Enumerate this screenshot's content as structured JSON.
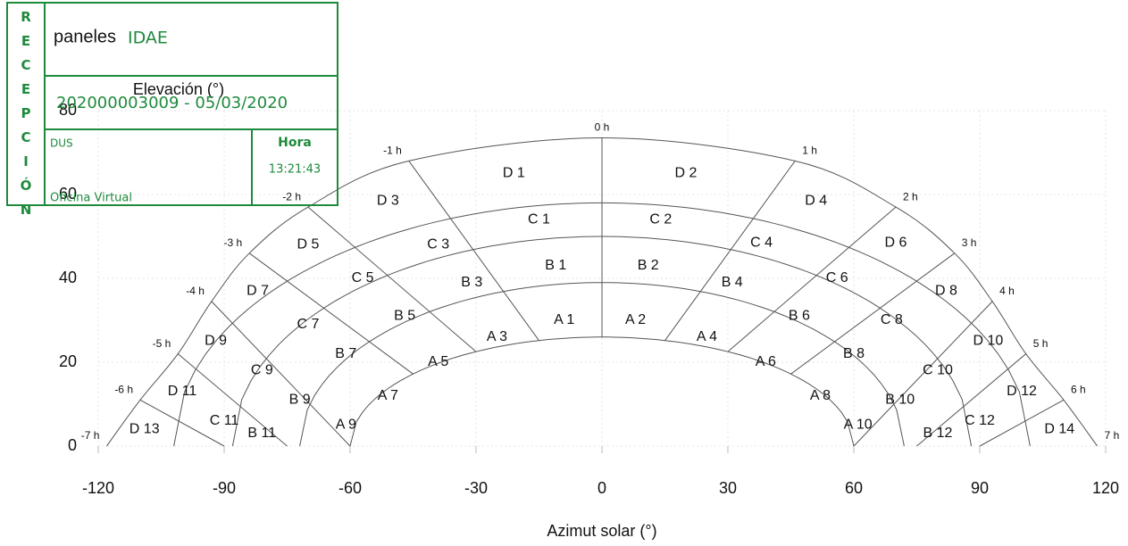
{
  "header_text": "paneles",
  "stamp": {
    "vertical_label": "RECEPCIÓN",
    "org": "IDAE",
    "registry": "202000003009 - 05/03/2020",
    "unit": "DUS",
    "time_label": "Hora",
    "time": "13:21:43",
    "office": "Oficina Virtual"
  },
  "chart_data": {
    "type": "sunpath",
    "xlabel": "Azimut solar (°)",
    "ylabel": "Elevación (°)",
    "xlim": [
      -120,
      120
    ],
    "xticks": [
      -120,
      -90,
      -60,
      -30,
      0,
      30,
      60,
      90,
      120
    ],
    "ylim": [
      0,
      80
    ],
    "yticks": [
      0,
      20,
      40,
      60,
      80
    ],
    "grid": true,
    "line_color": "#555555",
    "hours": [
      {
        "label": "-7 h",
        "az": -118,
        "el": 0
      },
      {
        "label": "-6 h",
        "az": -110,
        "el": 11
      },
      {
        "label": "-5 h",
        "az": -101,
        "el": 22
      },
      {
        "label": "-4 h",
        "az": -93,
        "el": 34.5
      },
      {
        "label": "-3 h",
        "az": -84,
        "el": 46
      },
      {
        "label": "-2 h",
        "az": -70,
        "el": 57
      },
      {
        "label": "-1 h",
        "az": -46,
        "el": 68
      },
      {
        "label": "0 h",
        "az": 0,
        "el": 73.5
      },
      {
        "label": "1 h",
        "az": 46,
        "el": 68
      },
      {
        "label": "2 h",
        "az": 70,
        "el": 57
      },
      {
        "label": "3 h",
        "az": 84,
        "el": 46
      },
      {
        "label": "4 h",
        "az": 93,
        "el": 34.5
      },
      {
        "label": "5 h",
        "az": 101,
        "el": 22
      },
      {
        "label": "6 h",
        "az": 110,
        "el": 11
      },
      {
        "label": "7 h",
        "az": 118,
        "el": 0
      }
    ],
    "regions": [
      {
        "label": "D 1",
        "az": -21,
        "el": 65
      },
      {
        "label": "D 2",
        "az": 20,
        "el": 65
      },
      {
        "label": "D 3",
        "az": -51,
        "el": 58.5
      },
      {
        "label": "D 4",
        "az": 51,
        "el": 58.5
      },
      {
        "label": "C 1",
        "az": -15,
        "el": 54
      },
      {
        "label": "C 2",
        "az": 14,
        "el": 54
      },
      {
        "label": "D 5",
        "az": -70,
        "el": 48
      },
      {
        "label": "C 3",
        "az": -39,
        "el": 48
      },
      {
        "label": "C 4",
        "az": 38,
        "el": 48.5
      },
      {
        "label": "D 6",
        "az": 70,
        "el": 48.5
      },
      {
        "label": "B 1",
        "az": -11,
        "el": 43
      },
      {
        "label": "B 2",
        "az": 11,
        "el": 43
      },
      {
        "label": "C 5",
        "az": -57,
        "el": 40
      },
      {
        "label": "B 3",
        "az": -31,
        "el": 39
      },
      {
        "label": "B 4",
        "az": 31,
        "el": 39
      },
      {
        "label": "C 6",
        "az": 56,
        "el": 40
      },
      {
        "label": "D 7",
        "az": -82,
        "el": 37
      },
      {
        "label": "D 8",
        "az": 82,
        "el": 37
      },
      {
        "label": "B 5",
        "az": -47,
        "el": 31
      },
      {
        "label": "B 6",
        "az": 47,
        "el": 31
      },
      {
        "label": "A 1",
        "az": -9,
        "el": 30
      },
      {
        "label": "A 2",
        "az": 8,
        "el": 30
      },
      {
        "label": "C 7",
        "az": -70,
        "el": 29
      },
      {
        "label": "C 8",
        "az": 69,
        "el": 30
      },
      {
        "label": "A 3",
        "az": -25,
        "el": 26
      },
      {
        "label": "A 4",
        "az": 25,
        "el": 26
      },
      {
        "label": "D 9",
        "az": -92,
        "el": 25
      },
      {
        "label": "D 10",
        "az": 92,
        "el": 25
      },
      {
        "label": "B 7",
        "az": -61,
        "el": 22
      },
      {
        "label": "B 8",
        "az": 60,
        "el": 22
      },
      {
        "label": "A 5",
        "az": -39,
        "el": 20
      },
      {
        "label": "A 6",
        "az": 39,
        "el": 20
      },
      {
        "label": "C 9",
        "az": -81,
        "el": 18
      },
      {
        "label": "C 10",
        "az": 80,
        "el": 18
      },
      {
        "label": "D 11",
        "az": -100,
        "el": 13
      },
      {
        "label": "D 12",
        "az": 100,
        "el": 13
      },
      {
        "label": "A 7",
        "az": -51,
        "el": 12
      },
      {
        "label": "A 8",
        "az": 52,
        "el": 12
      },
      {
        "label": "B 9",
        "az": -72,
        "el": 11
      },
      {
        "label": "B 10",
        "az": 71,
        "el": 11
      },
      {
        "label": "C 11",
        "az": -90,
        "el": 6
      },
      {
        "label": "C 12",
        "az": 90,
        "el": 6
      },
      {
        "label": "A 9",
        "az": -61,
        "el": 5
      },
      {
        "label": "A 10",
        "az": 61,
        "el": 5
      },
      {
        "label": "D 13",
        "az": -109,
        "el": 4
      },
      {
        "label": "D 14",
        "az": 109,
        "el": 4
      },
      {
        "label": "B 11",
        "az": -81,
        "el": 3
      },
      {
        "label": "B 12",
        "az": 80,
        "el": 3
      }
    ]
  }
}
